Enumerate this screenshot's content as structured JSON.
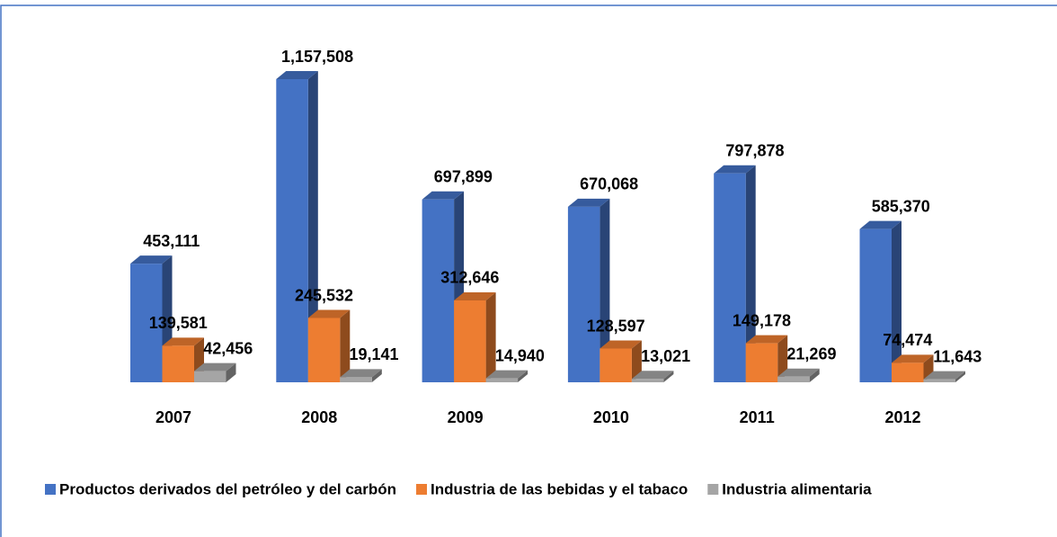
{
  "chart_data": {
    "type": "bar3d",
    "categories": [
      "2007",
      "2008",
      "2009",
      "2010",
      "2011",
      "2012"
    ],
    "series": [
      {
        "name": "Productos derivados del petróleo y del carbón",
        "color": "#4472c4",
        "values": [
          453111,
          1157508,
          697899,
          670068,
          797878,
          585370
        ],
        "value_labels": [
          "453,111",
          "1,157,508",
          "697,899",
          "670,068",
          "797,878",
          "585,370"
        ]
      },
      {
        "name": "Industria de las bebidas y el tabaco",
        "color": "#ed7d31",
        "values": [
          139581,
          245532,
          312646,
          128597,
          149178,
          74474
        ],
        "value_labels": [
          "139,581",
          "245,532",
          "312,646",
          "128,597",
          "149,178",
          "74,474"
        ]
      },
      {
        "name": "Industria alimentaria",
        "color": "#a5a5a5",
        "values": [
          42456,
          19141,
          14940,
          13021,
          21269,
          11643
        ],
        "value_labels": [
          "42,456",
          "19,141",
          "14,940",
          "13,021",
          "21,269",
          "11,643"
        ]
      }
    ]
  }
}
